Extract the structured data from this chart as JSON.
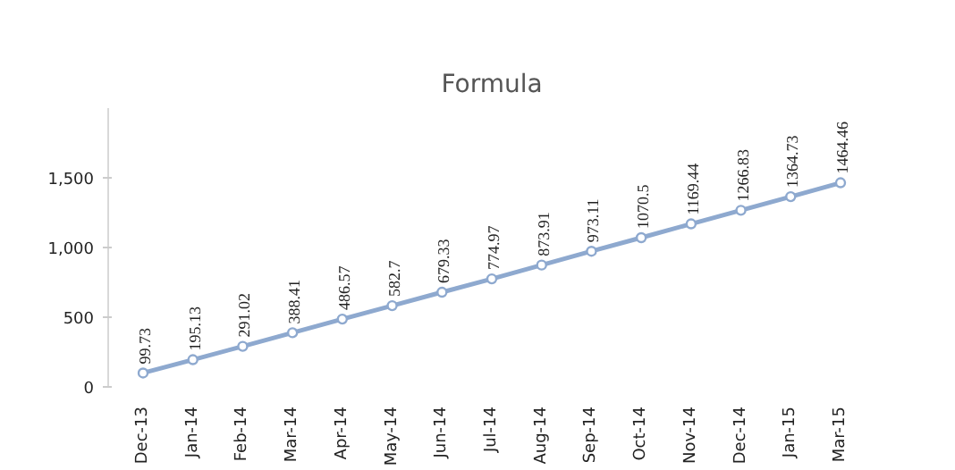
{
  "chart_data": {
    "type": "line",
    "title": "Formula",
    "categories": [
      "Dec-13",
      "Jan-14",
      "Feb-14",
      "Mar-14",
      "Apr-14",
      "May-14",
      "Jun-14",
      "Jul-14",
      "Aug-14",
      "Sep-14",
      "Oct-14",
      "Nov-14",
      "Dec-14",
      "Jan-15",
      "Mar-15"
    ],
    "series": [
      {
        "color": "#8ea9cf",
        "values": [
          99.73,
          195.13,
          291.02,
          388.41,
          486.57,
          582.7,
          679.33,
          774.97,
          873.91,
          973.11,
          1070.5,
          1169.44,
          1266.83,
          1364.73,
          1464.46
        ]
      }
    ],
    "ylim": [
      0,
      2000
    ],
    "yticks": [
      {
        "value": 0,
        "label": "0"
      },
      {
        "value": 500,
        "label": "500"
      },
      {
        "value": 1000,
        "label": "1,000"
      },
      {
        "value": 1500,
        "label": "1,500"
      }
    ],
    "data_labels": true,
    "marker": "circle",
    "line_style": "solid",
    "grid": false
  }
}
